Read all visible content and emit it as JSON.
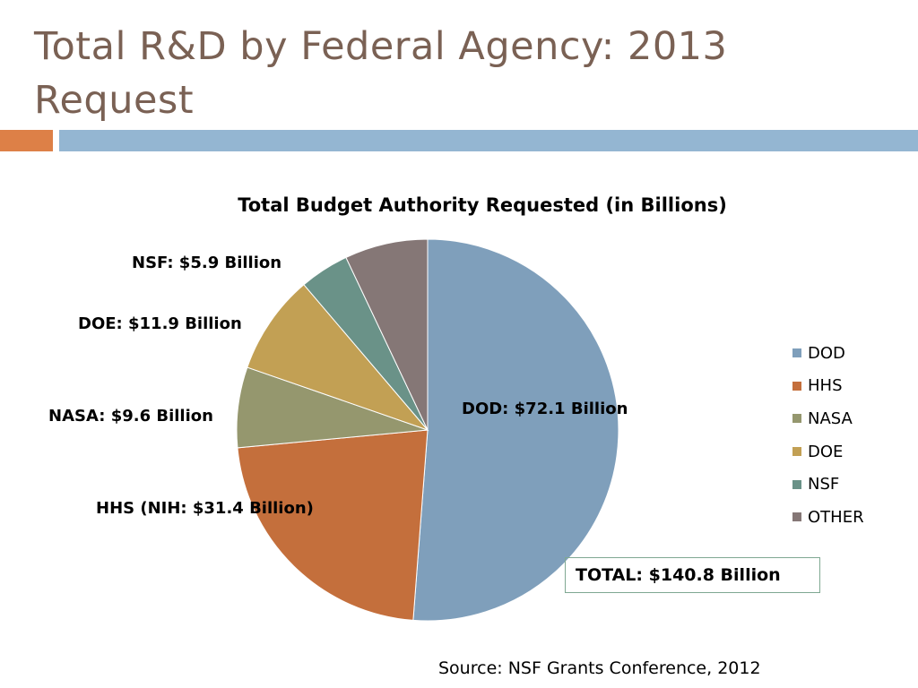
{
  "slide": {
    "title": "Total R&D by Federal Agency: 2013 Request",
    "source": "Source: NSF Grants Conference, 2012",
    "total_label": "TOTAL: $140.8 Billion"
  },
  "colors": {
    "title_text": "#7a6154",
    "accent_orange": "#dd8047",
    "accent_blue": "#94b6d2",
    "total_box_border": "#7fa892"
  },
  "chart_data": {
    "type": "pie",
    "title": "Total Budget Authority Requested (in Billions)",
    "legend_position": "right",
    "start_angle_deg": 0,
    "direction": "clockwise",
    "slices": [
      {
        "name": "DOD",
        "value": 72.1,
        "color": "#7f9fbb",
        "label": "DOD: $72.1 Billion"
      },
      {
        "name": "HHS",
        "value": 31.4,
        "color": "#c46f3c",
        "label": "HHS (NIH: $31.4 Billion)"
      },
      {
        "name": "NASA",
        "value": 9.6,
        "color": "#95976e",
        "label": "NASA: $9.6 Billion"
      },
      {
        "name": "DOE",
        "value": 11.9,
        "color": "#c2a054",
        "label": "DOE: $11.9 Billion"
      },
      {
        "name": "NSF",
        "value": 5.9,
        "color": "#6a9288",
        "label": "NSF: $5.9 Billion"
      },
      {
        "name": "OTHER",
        "value": 9.9,
        "color": "#857776",
        "label": ""
      }
    ],
    "legend": [
      "DOD",
      "HHS",
      "NASA",
      "DOE",
      "NSF",
      "OTHER"
    ]
  }
}
